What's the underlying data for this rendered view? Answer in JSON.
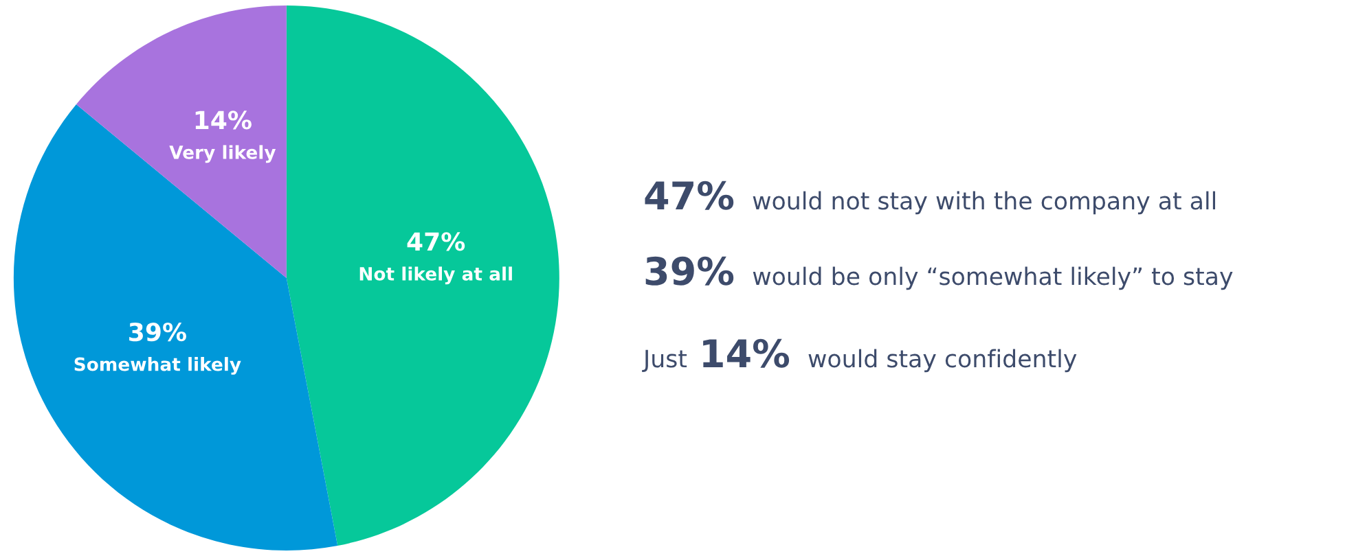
{
  "chart_data": {
    "type": "pie",
    "categories": [
      "Not likely at all",
      "Somewhat likely",
      "Very likely"
    ],
    "values": [
      47,
      39,
      14
    ],
    "value_labels": [
      "47%",
      "39%",
      "14%"
    ],
    "colors": [
      "#06c89a",
      "#0098d9",
      "#a873de"
    ],
    "annotations": [
      "47% would not stay with the company at all",
      "39% would be only “somewhat likely” to stay",
      "Just 14% would stay confidently"
    ]
  }
}
